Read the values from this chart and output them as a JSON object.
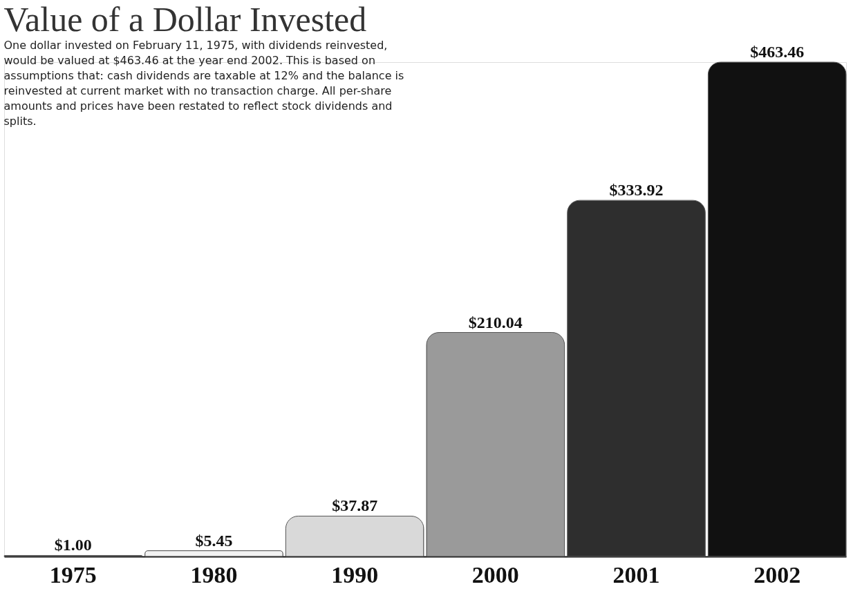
{
  "chart_data": {
    "type": "bar",
    "title": "Value of a Dollar Invested",
    "subtitle": "One dollar invested on February 11, 1975, with dividends reinvested, would be valued at $463.46 at the year end 2002. This is based on assumptions that: cash dividends are taxable at 12% and the balance is reinvested at current market with no transaction charge. All per-share amounts and prices have been restated to reflect stock dividends and splits.",
    "categories": [
      "1975",
      "1980",
      "1990",
      "2000",
      "2001",
      "2002"
    ],
    "values": [
      1.0,
      5.45,
      37.87,
      210.04,
      333.92,
      463.46
    ],
    "colors": [
      "#333333",
      "#f2f2f2",
      "#d9d9d9",
      "#9a9a9a",
      "#2e2e2e",
      "#111111"
    ],
    "value_labels": [
      "$1.00",
      "$5.45",
      "$37.87",
      "$210.04",
      "$333.92",
      "$463.46"
    ],
    "grid": false
  }
}
